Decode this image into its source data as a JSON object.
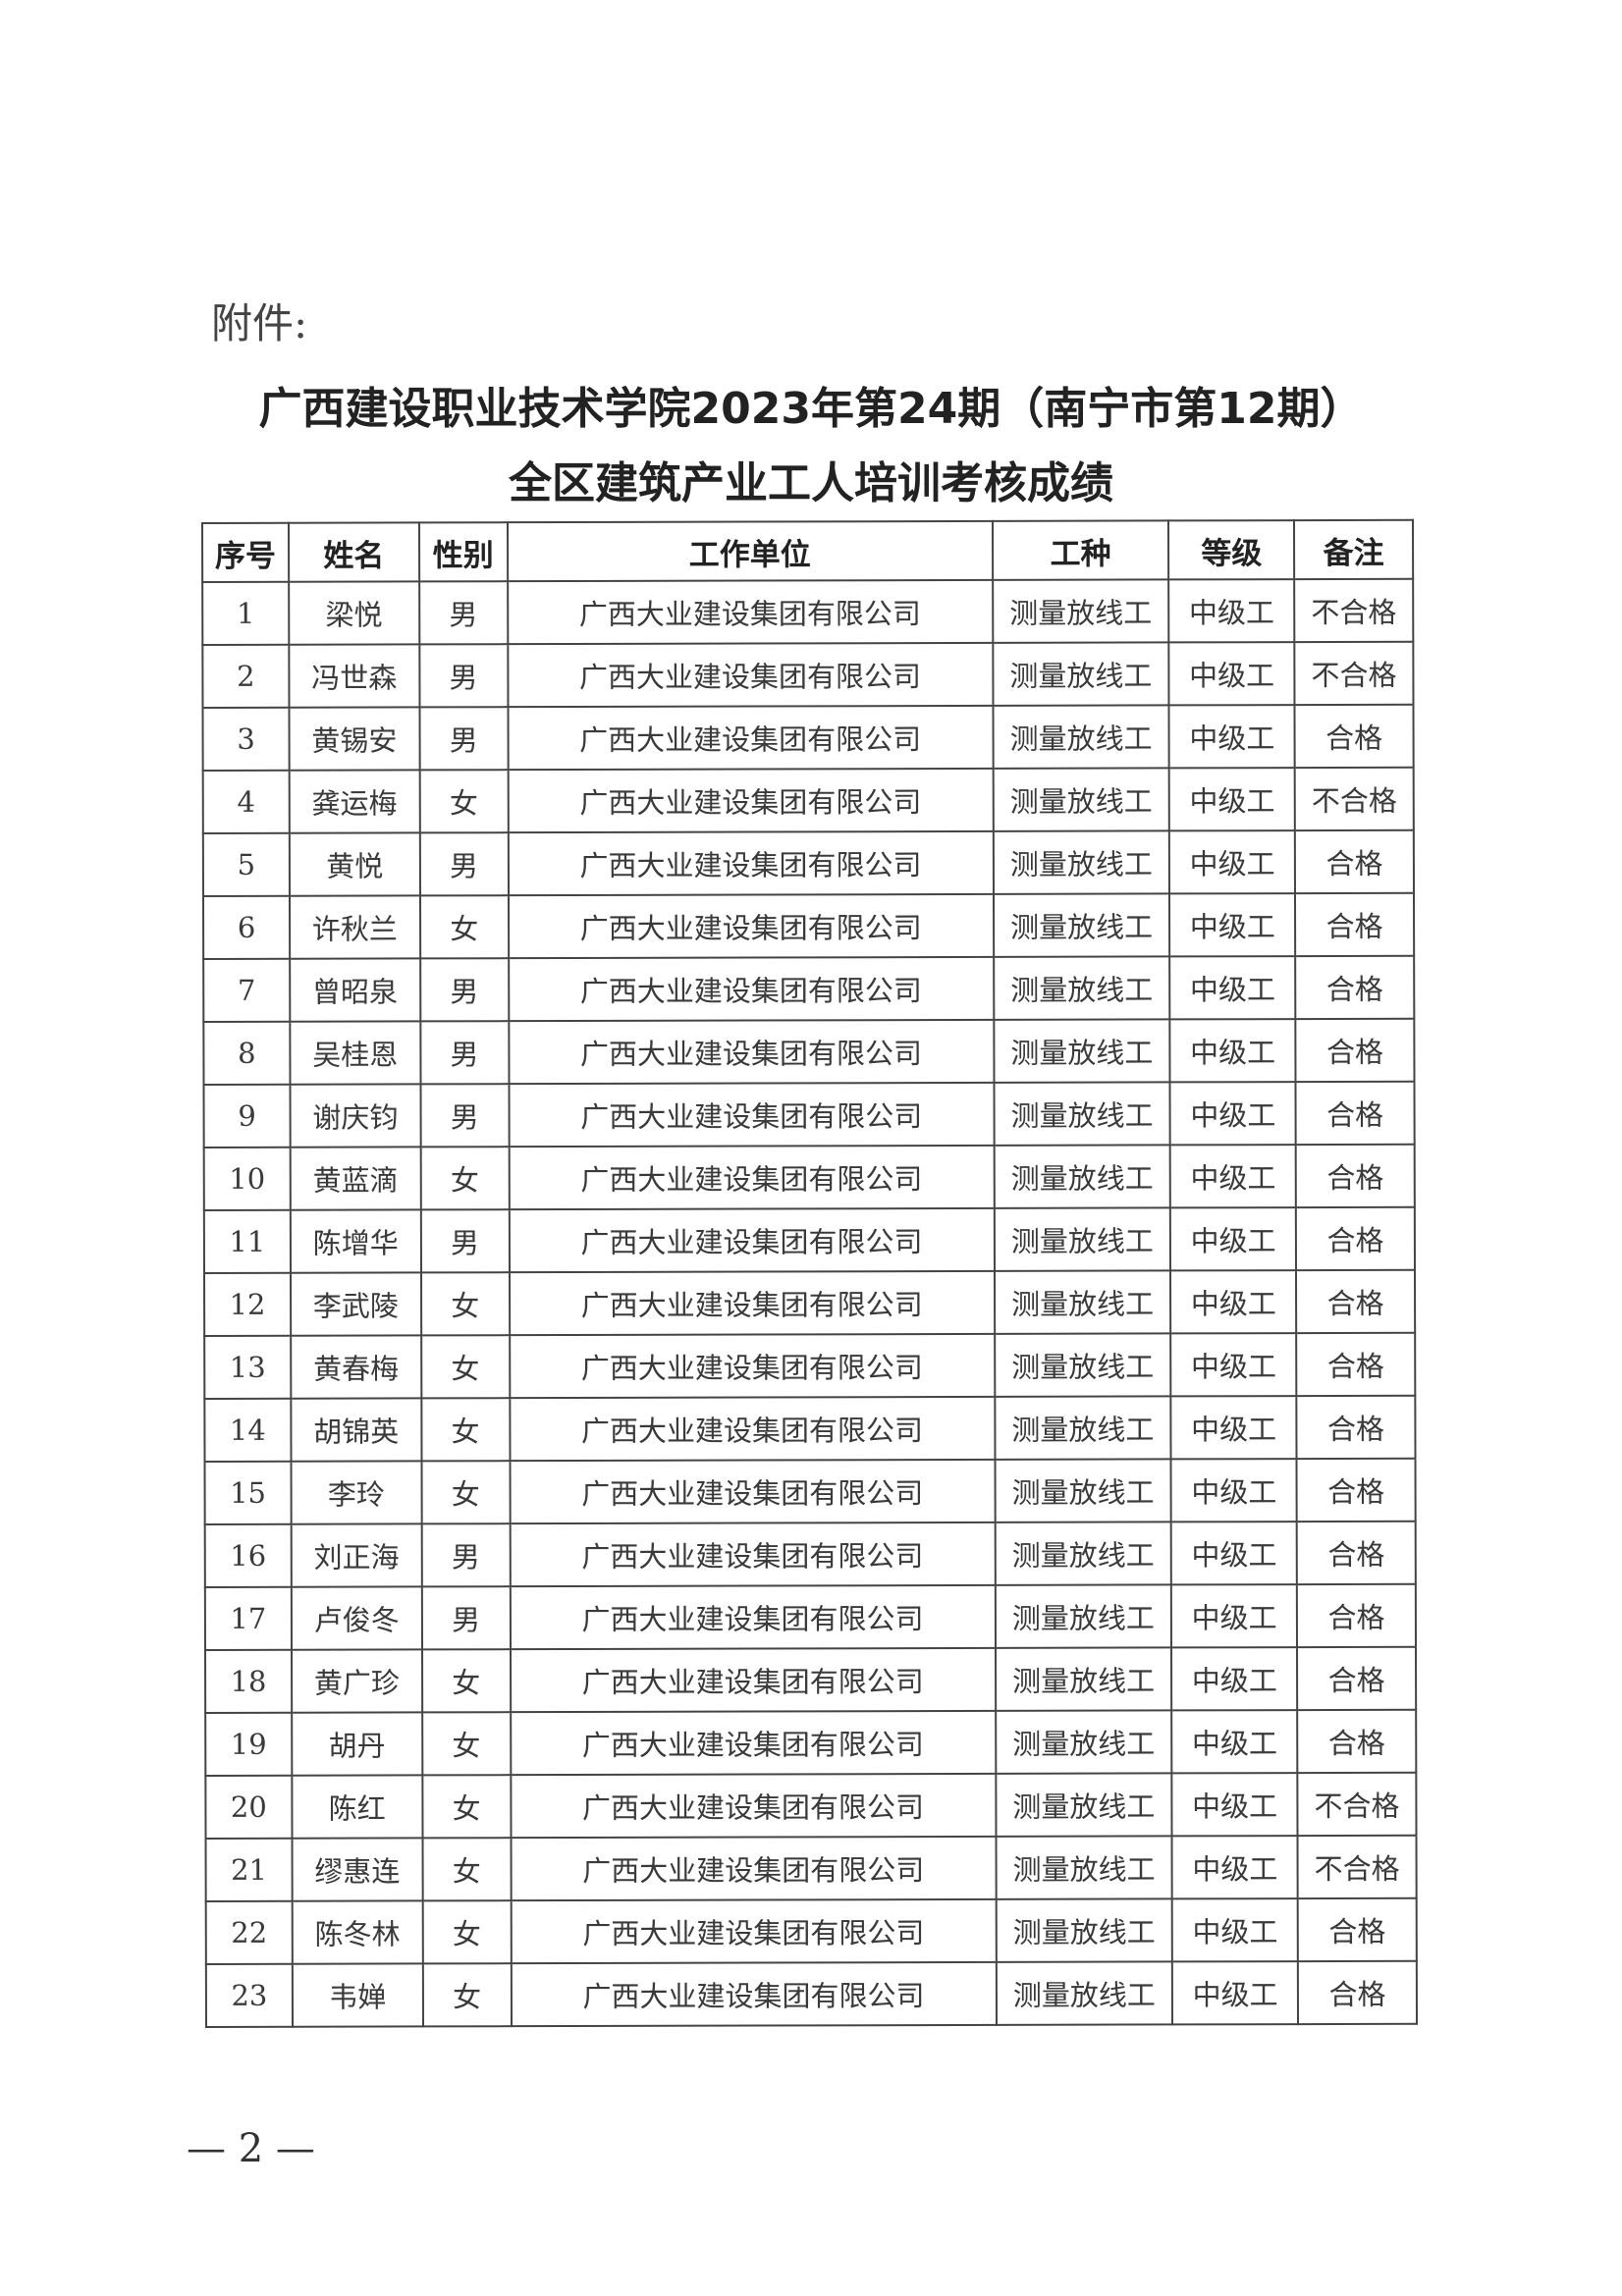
{
  "attachment_label": "附件:",
  "title_line1": "广西建设职业技术学院2023年第24期（南宁市第12期）",
  "title_line2": "全区建筑产业工人培训考核成绩",
  "table": {
    "headers": [
      "序号",
      "姓名",
      "性别",
      "工作单位",
      "工种",
      "等级",
      "备注"
    ],
    "rows": [
      [
        "1",
        "梁悦",
        "男",
        "广西大业建设集团有限公司",
        "测量放线工",
        "中级工",
        "不合格"
      ],
      [
        "2",
        "冯世森",
        "男",
        "广西大业建设集团有限公司",
        "测量放线工",
        "中级工",
        "不合格"
      ],
      [
        "3",
        "黄锡安",
        "男",
        "广西大业建设集团有限公司",
        "测量放线工",
        "中级工",
        "合格"
      ],
      [
        "4",
        "龚运梅",
        "女",
        "广西大业建设集团有限公司",
        "测量放线工",
        "中级工",
        "不合格"
      ],
      [
        "5",
        "黄悦",
        "男",
        "广西大业建设集团有限公司",
        "测量放线工",
        "中级工",
        "合格"
      ],
      [
        "6",
        "许秋兰",
        "女",
        "广西大业建设集团有限公司",
        "测量放线工",
        "中级工",
        "合格"
      ],
      [
        "7",
        "曾昭泉",
        "男",
        "广西大业建设集团有限公司",
        "测量放线工",
        "中级工",
        "合格"
      ],
      [
        "8",
        "吴桂恩",
        "男",
        "广西大业建设集团有限公司",
        "测量放线工",
        "中级工",
        "合格"
      ],
      [
        "9",
        "谢庆钧",
        "男",
        "广西大业建设集团有限公司",
        "测量放线工",
        "中级工",
        "合格"
      ],
      [
        "10",
        "黄蓝滴",
        "女",
        "广西大业建设集团有限公司",
        "测量放线工",
        "中级工",
        "合格"
      ],
      [
        "11",
        "陈增华",
        "男",
        "广西大业建设集团有限公司",
        "测量放线工",
        "中级工",
        "合格"
      ],
      [
        "12",
        "李武陵",
        "女",
        "广西大业建设集团有限公司",
        "测量放线工",
        "中级工",
        "合格"
      ],
      [
        "13",
        "黄春梅",
        "女",
        "广西大业建设集团有限公司",
        "测量放线工",
        "中级工",
        "合格"
      ],
      [
        "14",
        "胡锦英",
        "女",
        "广西大业建设集团有限公司",
        "测量放线工",
        "中级工",
        "合格"
      ],
      [
        "15",
        "李玲",
        "女",
        "广西大业建设集团有限公司",
        "测量放线工",
        "中级工",
        "合格"
      ],
      [
        "16",
        "刘正海",
        "男",
        "广西大业建设集团有限公司",
        "测量放线工",
        "中级工",
        "合格"
      ],
      [
        "17",
        "卢俊冬",
        "男",
        "广西大业建设集团有限公司",
        "测量放线工",
        "中级工",
        "合格"
      ],
      [
        "18",
        "黄广珍",
        "女",
        "广西大业建设集团有限公司",
        "测量放线工",
        "中级工",
        "合格"
      ],
      [
        "19",
        "胡丹",
        "女",
        "广西大业建设集团有限公司",
        "测量放线工",
        "中级工",
        "合格"
      ],
      [
        "20",
        "陈红",
        "女",
        "广西大业建设集团有限公司",
        "测量放线工",
        "中级工",
        "不合格"
      ],
      [
        "21",
        "缪惠连",
        "女",
        "广西大业建设集团有限公司",
        "测量放线工",
        "中级工",
        "不合格"
      ],
      [
        "22",
        "陈冬林",
        "女",
        "广西大业建设集团有限公司",
        "测量放线工",
        "中级工",
        "合格"
      ],
      [
        "23",
        "韦婵",
        "女",
        "广西大业建设集团有限公司",
        "测量放线工",
        "中级工",
        "合格"
      ]
    ]
  },
  "page_number": "— 2 —"
}
